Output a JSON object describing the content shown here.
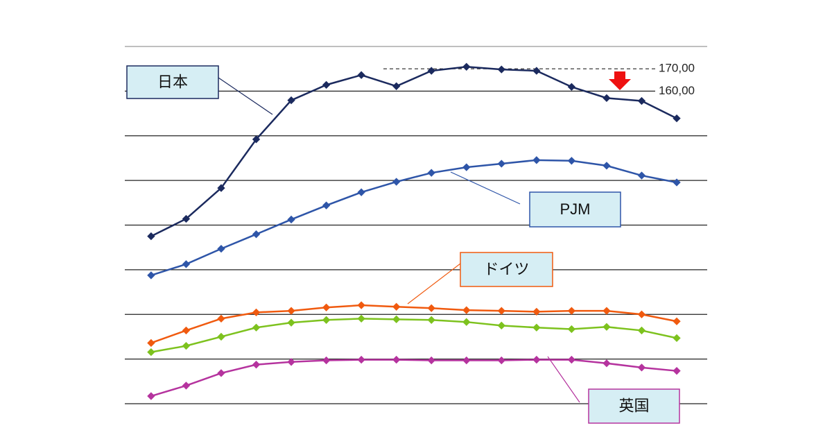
{
  "chart_data": {
    "type": "line",
    "x": [
      1,
      2,
      3,
      4,
      5,
      6,
      7,
      8,
      9,
      10,
      11,
      12,
      13,
      14,
      15,
      16
    ],
    "xlim": [
      0.25,
      16.87
    ],
    "ylim": [
      20000,
      180000
    ],
    "gridlines": [
      20000,
      40000,
      60000,
      80000,
      100000,
      120000,
      140000,
      180000
    ],
    "annotations": [
      {
        "value": 170000,
        "label": "170,00",
        "style": "dashed"
      },
      {
        "value": 160000,
        "label": "160,00",
        "style": "solid"
      }
    ],
    "series": [
      {
        "name": "日本",
        "color": "#1b2a5e",
        "values": [
          95000,
          102800,
          116600,
          138400,
          155900,
          162800,
          167200,
          162200,
          169100,
          170900,
          169700,
          169100,
          161900,
          156900,
          155600,
          147800
        ]
      },
      {
        "name": "PJM",
        "color": "#2e55a8",
        "values": [
          77500,
          82500,
          89400,
          95900,
          102500,
          108800,
          114700,
          119400,
          123400,
          125900,
          127500,
          129100,
          128800,
          126600,
          122200,
          119100
        ]
      },
      {
        "name": "ドイツ",
        "color": "#f05a0f",
        "values": [
          47200,
          52800,
          58100,
          60900,
          61600,
          63100,
          64100,
          63400,
          62800,
          61900,
          61600,
          61200,
          61600,
          61600,
          60000,
          56900
        ]
      },
      {
        "color": "#7dc21e",
        "values": [
          43100,
          45900,
          50000,
          54100,
          56300,
          57500,
          58100,
          57800,
          57500,
          56600,
          55000,
          54100,
          53400,
          54400,
          52800,
          49400
        ]
      },
      {
        "name": "英国",
        "color": "#b5339e",
        "values": [
          23400,
          28100,
          33700,
          37500,
          38700,
          39400,
          39700,
          39700,
          39400,
          39400,
          39400,
          39700,
          39700,
          38100,
          36200,
          34700
        ]
      }
    ]
  }
}
